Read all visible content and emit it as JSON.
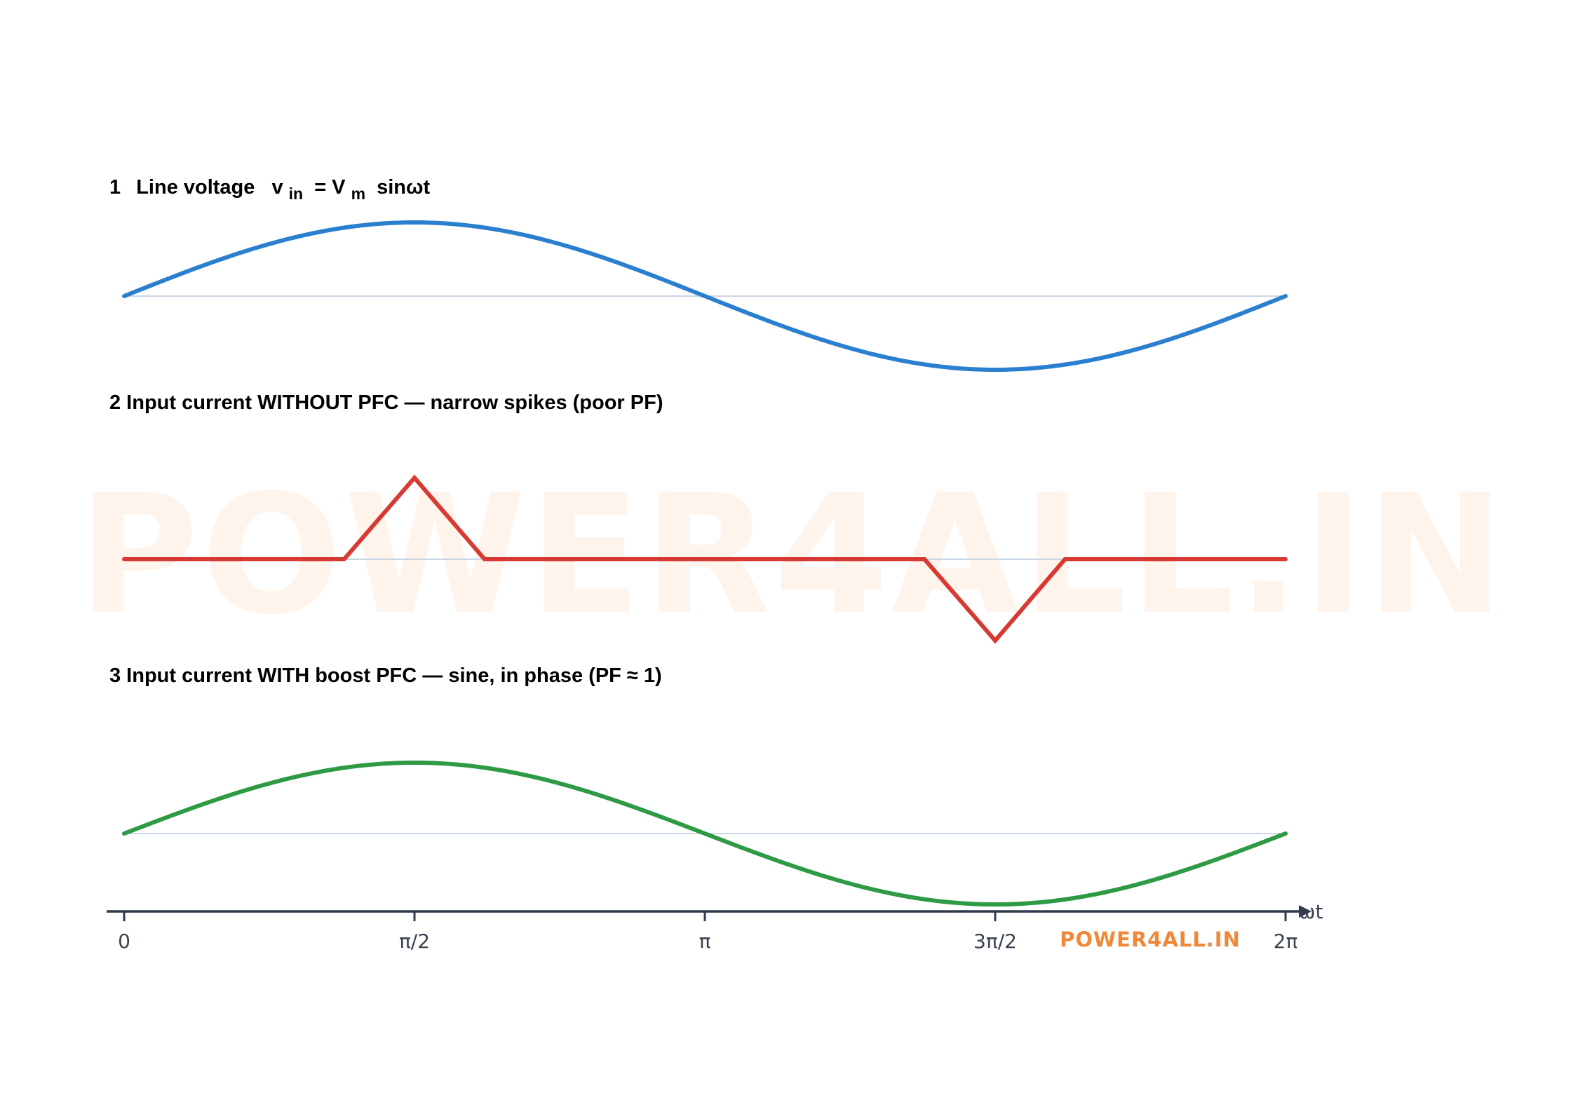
{
  "chart_data": [
    {
      "type": "line",
      "panel": 1,
      "title": {
        "num": "1",
        "label": "Line voltage",
        "v": "v",
        "v_sub": "in",
        "eq": "= V",
        "vm_sub": "m",
        "tail": "sinωt"
      },
      "color": "#2b7fcf",
      "function": "sin",
      "x": [
        0,
        0.7854,
        1.5708,
        2.3562,
        3.1416,
        3.927,
        4.7124,
        5.4978,
        6.2832
      ],
      "y": [
        0,
        0.707,
        1,
        0.707,
        0,
        -0.707,
        -1,
        -0.707,
        0
      ],
      "ylim": [
        -1.1,
        1.1
      ]
    },
    {
      "type": "line",
      "panel": 2,
      "title": {
        "text": "2  Input current WITHOUT PFC — narrow spikes (poor PF)"
      },
      "color": "#d63a33",
      "x": [
        0,
        1.19,
        1.5708,
        1.95,
        4.33,
        4.7124,
        5.09,
        6.2832
      ],
      "y": [
        0,
        0,
        1,
        0,
        0,
        -1,
        0,
        0
      ],
      "ylim": [
        -1.1,
        1.1
      ]
    },
    {
      "type": "line",
      "panel": 3,
      "title": {
        "text": "3  Input current WITH boost PFC — sine, in phase (PF ≈ 1)"
      },
      "color": "#2e9a44",
      "function": "sin",
      "x": [
        0,
        0.7854,
        1.5708,
        2.3562,
        3.1416,
        3.927,
        4.7124,
        5.4978,
        6.2832
      ],
      "y": [
        0,
        0.707,
        1,
        0.707,
        0,
        -0.707,
        -1,
        -0.707,
        0
      ],
      "ylim": [
        -1.1,
        1.1
      ]
    }
  ],
  "x_axis": {
    "label": "ωt",
    "xlim": [
      0,
      6.2832
    ],
    "ticks": [
      {
        "value": 0,
        "label": "0"
      },
      {
        "value": 1.5708,
        "label": "π/2"
      },
      {
        "value": 3.1416,
        "label": "π"
      },
      {
        "value": 4.7124,
        "label": "3π/2"
      },
      {
        "value": 6.2832,
        "label": "2π"
      }
    ]
  },
  "watermark": "POWER4ALL.IN",
  "brand": "POWER4ALL.IN",
  "colors": {
    "baseline": "#c9d6e6",
    "axis": "#2f3a4c",
    "watermark": "#fff4ec",
    "brand": "#f0883a"
  }
}
